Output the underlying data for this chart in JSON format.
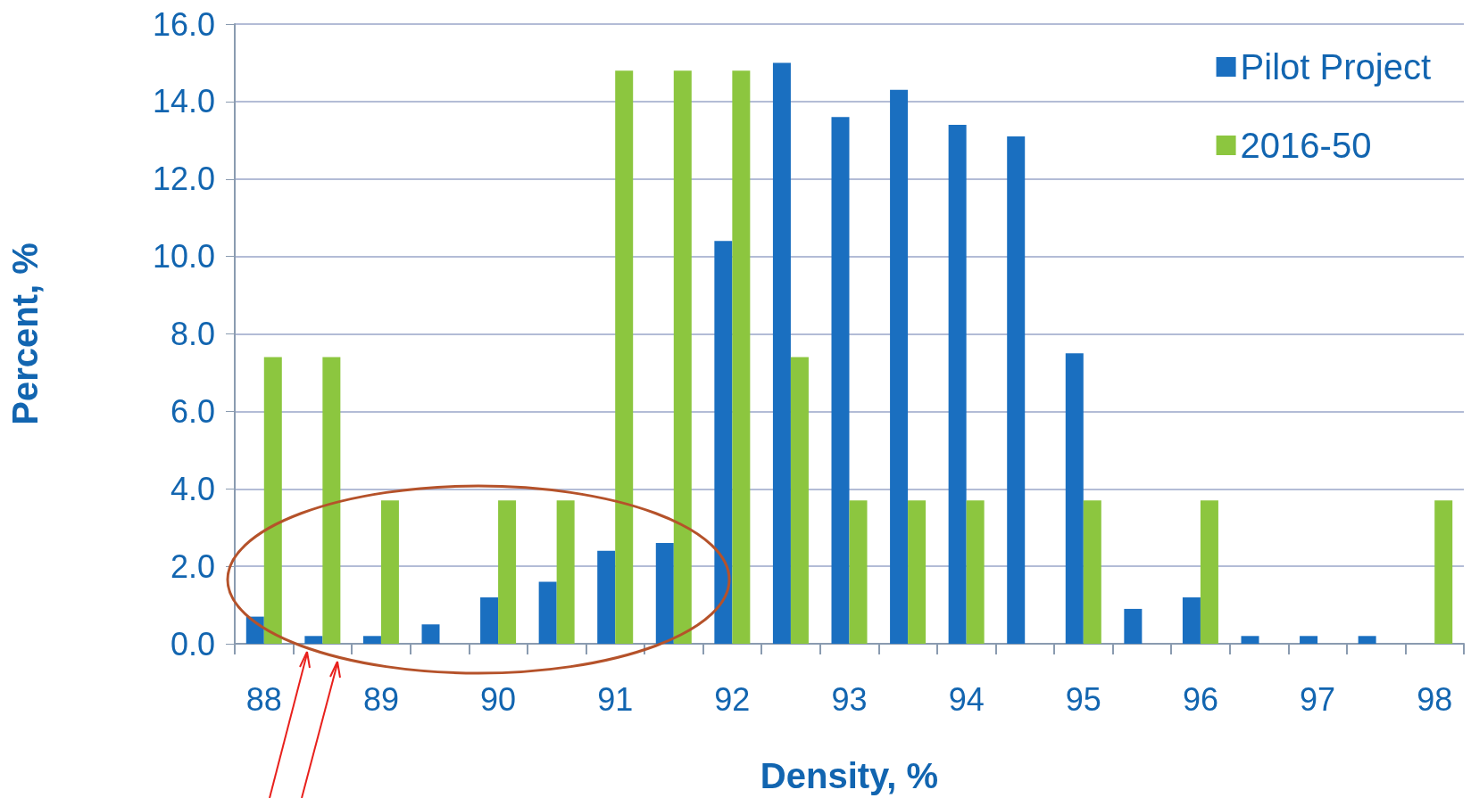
{
  "chart_data": {
    "type": "bar",
    "xlabel": "Density, %",
    "ylabel": "Percent, %",
    "categories": [
      "88",
      null,
      "89",
      null,
      "90",
      null,
      "91",
      null,
      "92",
      null,
      "93",
      null,
      "94",
      null,
      "95",
      null,
      "96",
      null,
      "97",
      null,
      "98"
    ],
    "series": [
      {
        "name": "Pilot Project",
        "color": "#1a6fc0",
        "values": [
          0.7,
          0.2,
          0.2,
          0.5,
          1.2,
          1.6,
          2.4,
          2.6,
          10.4,
          15.0,
          13.6,
          14.3,
          13.4,
          13.1,
          7.5,
          0.9,
          1.2,
          0.2,
          0.2,
          0.2,
          0
        ]
      },
      {
        "name": "2016-50",
        "color": "#8cc63f",
        "values": [
          7.4,
          7.4,
          3.7,
          0,
          3.7,
          3.7,
          14.8,
          14.8,
          14.8,
          7.4,
          3.7,
          3.7,
          3.7,
          0,
          3.7,
          0,
          3.7,
          0,
          0,
          0,
          3.7
        ]
      }
    ],
    "ylim": [
      0,
      16
    ],
    "yticks": [
      {
        "value": 0,
        "label": "0.0"
      },
      {
        "value": 2,
        "label": "2.0"
      },
      {
        "value": 4,
        "label": "4.0"
      },
      {
        "value": 6,
        "label": "6.0"
      },
      {
        "value": 8,
        "label": "8.0"
      },
      {
        "value": 10,
        "label": "10.0"
      },
      {
        "value": 12,
        "label": "12.0"
      },
      {
        "value": 14,
        "label": "14.0"
      },
      {
        "value": 16,
        "label": "16.0"
      }
    ],
    "grid": "y",
    "legend": "top right"
  }
}
